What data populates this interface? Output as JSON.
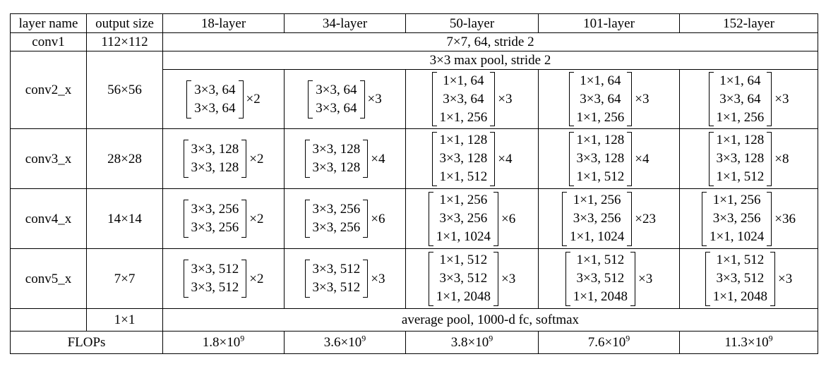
{
  "header": [
    "layer name",
    "output size",
    "18-layer",
    "34-layer",
    "50-layer",
    "101-layer",
    "152-layer"
  ],
  "conv1": {
    "name": "conv1",
    "size": "112×112",
    "spec": "7×7, 64, stride 2"
  },
  "pool": {
    "spec": "3×3 max pool, stride 2"
  },
  "rows": [
    {
      "name": "conv2_x",
      "size": "56×56",
      "cells": [
        {
          "lines": [
            "3×3, 64",
            "3×3, 64"
          ],
          "mult": "×2"
        },
        {
          "lines": [
            "3×3, 64",
            "3×3, 64"
          ],
          "mult": "×3"
        },
        {
          "lines": [
            "1×1, 64",
            "3×3, 64",
            "1×1, 256"
          ],
          "mult": "×3"
        },
        {
          "lines": [
            "1×1, 64",
            "3×3, 64",
            "1×1, 256"
          ],
          "mult": "×3"
        },
        {
          "lines": [
            "1×1, 64",
            "3×3, 64",
            "1×1, 256"
          ],
          "mult": "×3"
        }
      ]
    },
    {
      "name": "conv3_x",
      "size": "28×28",
      "cells": [
        {
          "lines": [
            "3×3, 128",
            "3×3, 128"
          ],
          "mult": "×2"
        },
        {
          "lines": [
            "3×3, 128",
            "3×3, 128"
          ],
          "mult": "×4"
        },
        {
          "lines": [
            "1×1, 128",
            "3×3, 128",
            "1×1, 512"
          ],
          "mult": "×4"
        },
        {
          "lines": [
            "1×1, 128",
            "3×3, 128",
            "1×1, 512"
          ],
          "mult": "×4"
        },
        {
          "lines": [
            "1×1, 128",
            "3×3, 128",
            "1×1, 512"
          ],
          "mult": "×8"
        }
      ]
    },
    {
      "name": "conv4_x",
      "size": "14×14",
      "cells": [
        {
          "lines": [
            "3×3, 256",
            "3×3, 256"
          ],
          "mult": "×2"
        },
        {
          "lines": [
            "3×3, 256",
            "3×3, 256"
          ],
          "mult": "×6"
        },
        {
          "lines": [
            "1×1, 256",
            "3×3, 256",
            "1×1, 1024"
          ],
          "mult": "×6"
        },
        {
          "lines": [
            "1×1, 256",
            "3×3, 256",
            "1×1, 1024"
          ],
          "mult": "×23"
        },
        {
          "lines": [
            "1×1, 256",
            "3×3, 256",
            "1×1, 1024"
          ],
          "mult": "×36"
        }
      ]
    },
    {
      "name": "conv5_x",
      "size": "7×7",
      "cells": [
        {
          "lines": [
            "3×3, 512",
            "3×3, 512"
          ],
          "mult": "×2"
        },
        {
          "lines": [
            "3×3, 512",
            "3×3, 512"
          ],
          "mult": "×3"
        },
        {
          "lines": [
            "1×1, 512",
            "3×3, 512",
            "1×1, 2048"
          ],
          "mult": "×3"
        },
        {
          "lines": [
            "1×1, 512",
            "3×3, 512",
            "1×1, 2048"
          ],
          "mult": "×3"
        },
        {
          "lines": [
            "1×1, 512",
            "3×3, 512",
            "1×1, 2048"
          ],
          "mult": "×3"
        }
      ]
    }
  ],
  "final": {
    "size": "1×1",
    "spec": "average pool, 1000-d fc, softmax"
  },
  "flops": {
    "label": "FLOPs",
    "values": [
      {
        "base": "1.8×10",
        "exp": "9"
      },
      {
        "base": "3.6×10",
        "exp": "9"
      },
      {
        "base": "3.8×10",
        "exp": "9"
      },
      {
        "base": "7.6×10",
        "exp": "9"
      },
      {
        "base": "11.3×10",
        "exp": "9"
      }
    ]
  }
}
